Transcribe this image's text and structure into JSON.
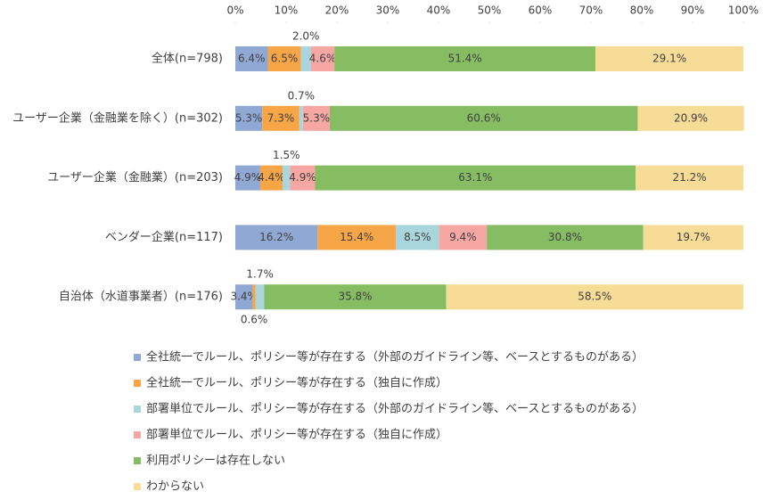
{
  "chart_data": {
    "type": "stacked-bar-horizontal",
    "categories": [
      "全体(n=798)",
      "ユーザー企業（金融業を除く）(n=302)",
      "ユーザー企業（金融業）(n=203)",
      "ベンダー企業(n=117)",
      "自治体（水道事業者）(n=176)"
    ],
    "series": [
      {
        "name": "全社統一でルール、ポリシー等が存在する（外部のガイドライン等、ベースとするものがある）",
        "color": "#8fa9d4",
        "values": [
          6.4,
          5.3,
          4.9,
          16.2,
          3.4
        ],
        "value_labels": [
          "6.4%",
          "5.3%",
          "4.9%",
          "16.2%",
          "3.4%"
        ]
      },
      {
        "name": "全社統一でルール、ポリシー等が存在する（独自に作成）",
        "color": "#f6a547",
        "values": [
          6.5,
          7.3,
          4.4,
          15.4,
          0.6
        ],
        "value_labels": [
          "6.5%",
          "7.3%",
          "4.4%",
          "15.4%",
          "0.6%"
        ]
      },
      {
        "name": "部署単位でルール、ポリシー等が存在する（外部のガイドライン等、ベースとするものがある）",
        "color": "#a9d6dc",
        "values": [
          2.0,
          0.7,
          1.5,
          8.5,
          1.7
        ],
        "value_labels": [
          "2.0%",
          "0.7%",
          "1.5%",
          "8.5%",
          "1.7%"
        ]
      },
      {
        "name": "部署単位でルール、ポリシー等が存在する（独自に作成）",
        "color": "#f6a6a3",
        "values": [
          4.6,
          5.3,
          4.9,
          9.4,
          0
        ],
        "value_labels": [
          "4.6%",
          "5.3%",
          "4.9%",
          "9.4%",
          null
        ]
      },
      {
        "name": "利用ポリシーは存在しない",
        "color": "#86bd63",
        "values": [
          51.4,
          60.6,
          63.1,
          30.8,
          35.8
        ],
        "value_labels": [
          "51.4%",
          "60.6%",
          "63.1%",
          "30.8%",
          "35.8%"
        ]
      },
      {
        "name": "わからない",
        "color": "#f7dc98",
        "values": [
          29.1,
          20.9,
          21.2,
          19.7,
          58.5
        ],
        "value_labels": [
          "29.1%",
          "20.9%",
          "21.2%",
          "19.7%",
          "58.5%"
        ]
      }
    ],
    "xlim": [
      0,
      100
    ],
    "xticks": [
      {
        "value": 0,
        "label": "0%"
      },
      {
        "value": 10,
        "label": "10%"
      },
      {
        "value": 20,
        "label": "20%"
      },
      {
        "value": 30,
        "label": "30%"
      },
      {
        "value": 40,
        "label": "40%"
      },
      {
        "value": 50,
        "label": "50%"
      },
      {
        "value": 60,
        "label": "60%"
      },
      {
        "value": 70,
        "label": "70%"
      },
      {
        "value": 80,
        "label": "80%"
      },
      {
        "value": 90,
        "label": "90%"
      },
      {
        "value": 100,
        "label": "100%"
      }
    ],
    "grid": false,
    "legend": "bottom"
  }
}
